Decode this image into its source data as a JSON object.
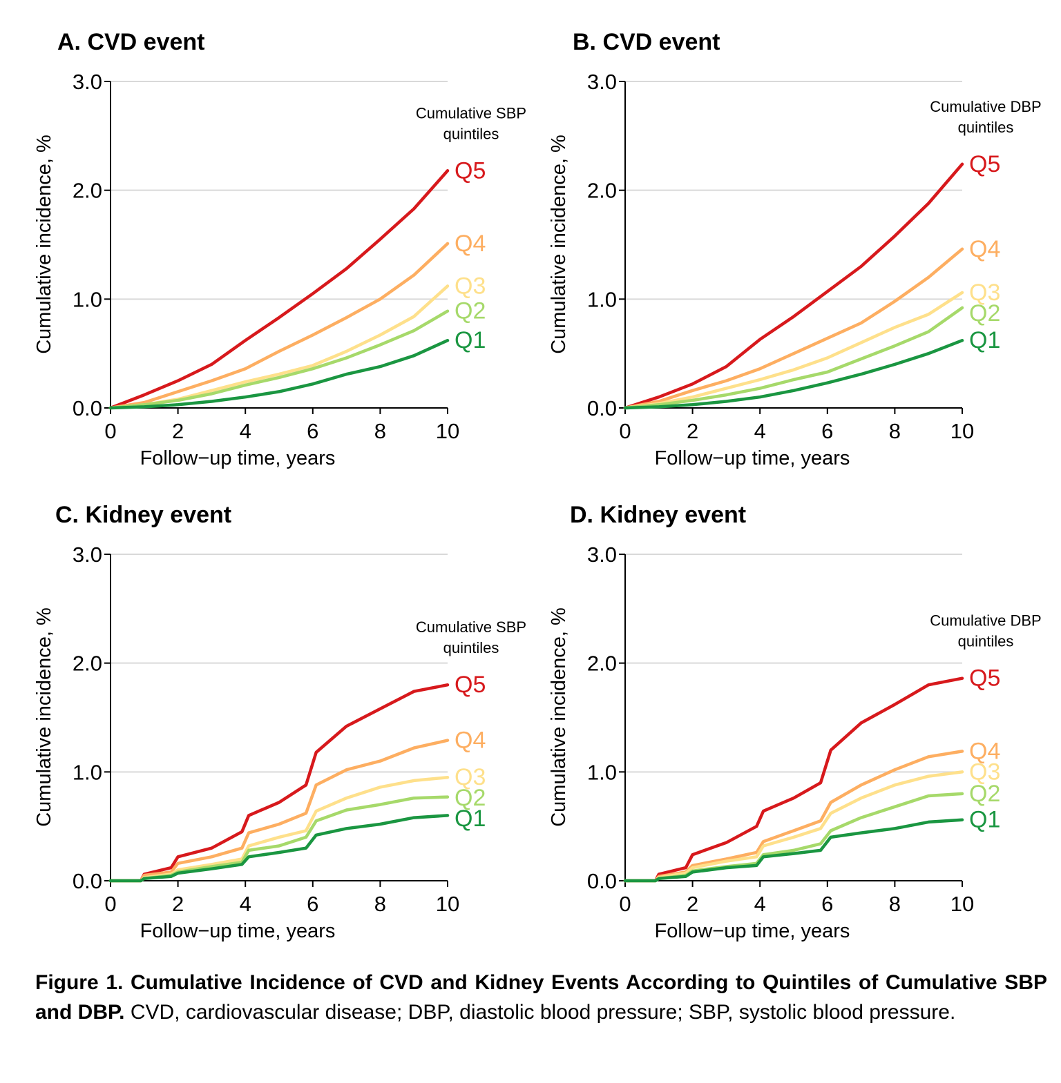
{
  "figure": {
    "caption_bold": "Figure 1. Cumulative Incidence of CVD and Kidney Events According to Quintiles of Cumulative SBP and DBP.",
    "caption_text": " CVD, cardiovascular disease; DBP, diastolic blood pressure; SBP, systolic blood pressure."
  },
  "colors": {
    "Q1": "#1a9641",
    "Q2": "#a6d96a",
    "Q3": "#fee08b",
    "Q4": "#fdae61",
    "Q5": "#d7191c"
  },
  "chart_data": [
    {
      "type": "line",
      "title": "A. CVD event",
      "xlabel": "Follow−up time, years",
      "ylabel": "Cumulative incidence, %",
      "xlim": [
        0,
        10
      ],
      "ylim": [
        0,
        3
      ],
      "xticks": [
        "0",
        "2",
        "4",
        "6",
        "8",
        "10"
      ],
      "yticks": [
        "0.0",
        "1.0",
        "2.0",
        "3.0"
      ],
      "legend_title": [
        "Cumulative SBP",
        "quintiles"
      ],
      "x": [
        0,
        1,
        2,
        3,
        4,
        5,
        6,
        7,
        8,
        9,
        10
      ],
      "series": [
        {
          "name": "Q5",
          "values": [
            0,
            0.12,
            0.25,
            0.4,
            0.62,
            0.83,
            1.05,
            1.28,
            1.55,
            1.83,
            2.18
          ]
        },
        {
          "name": "Q4",
          "values": [
            0,
            0.05,
            0.15,
            0.25,
            0.36,
            0.52,
            0.67,
            0.83,
            1.0,
            1.22,
            1.51
          ]
        },
        {
          "name": "Q3",
          "values": [
            0,
            0.03,
            0.08,
            0.16,
            0.24,
            0.31,
            0.39,
            0.52,
            0.67,
            0.84,
            1.12
          ]
        },
        {
          "name": "Q2",
          "values": [
            0,
            0.03,
            0.07,
            0.13,
            0.21,
            0.28,
            0.36,
            0.46,
            0.58,
            0.71,
            0.89
          ]
        },
        {
          "name": "Q1",
          "values": [
            0,
            0.01,
            0.03,
            0.06,
            0.1,
            0.15,
            0.22,
            0.31,
            0.38,
            0.48,
            0.62
          ]
        }
      ]
    },
    {
      "type": "line",
      "title": "B. CVD event",
      "xlabel": "Follow−up time, years",
      "ylabel": "Cumulative incidence, %",
      "xlim": [
        0,
        10
      ],
      "ylim": [
        0,
        3
      ],
      "xticks": [
        "0",
        "2",
        "4",
        "6",
        "8",
        "10"
      ],
      "yticks": [
        "0.0",
        "1.0",
        "2.0",
        "3.0"
      ],
      "legend_title": [
        "Cumulative DBP",
        "quintiles"
      ],
      "x": [
        0,
        1,
        2,
        3,
        4,
        5,
        6,
        7,
        8,
        9,
        10
      ],
      "series": [
        {
          "name": "Q5",
          "values": [
            0,
            0.1,
            0.22,
            0.38,
            0.63,
            0.84,
            1.07,
            1.3,
            1.58,
            1.88,
            2.24
          ]
        },
        {
          "name": "Q4",
          "values": [
            0,
            0.06,
            0.16,
            0.25,
            0.36,
            0.5,
            0.64,
            0.78,
            0.98,
            1.2,
            1.46
          ]
        },
        {
          "name": "Q3",
          "values": [
            0,
            0.04,
            0.1,
            0.18,
            0.26,
            0.35,
            0.46,
            0.6,
            0.74,
            0.86,
            1.06
          ]
        },
        {
          "name": "Q2",
          "values": [
            0,
            0.03,
            0.07,
            0.12,
            0.18,
            0.26,
            0.33,
            0.45,
            0.57,
            0.7,
            0.92
          ]
        },
        {
          "name": "Q1",
          "values": [
            0,
            0.01,
            0.03,
            0.06,
            0.1,
            0.16,
            0.23,
            0.31,
            0.4,
            0.5,
            0.62
          ]
        }
      ]
    },
    {
      "type": "line",
      "title": "C. Kidney event",
      "xlabel": "Follow−up time, years",
      "ylabel": "Cumulative incidence, %",
      "xlim": [
        0,
        10
      ],
      "ylim": [
        0,
        3
      ],
      "xticks": [
        "0",
        "2",
        "4",
        "6",
        "8",
        "10"
      ],
      "yticks": [
        "0.0",
        "1.0",
        "2.0",
        "3.0"
      ],
      "legend_title": [
        "Cumulative SBP",
        "quintiles"
      ],
      "x": [
        0,
        0.9,
        1.0,
        1.8,
        2.0,
        3.0,
        3.9,
        4.1,
        5.0,
        5.8,
        6.1,
        7.0,
        8.0,
        9.0,
        10.0
      ],
      "series": [
        {
          "name": "Q5",
          "values": [
            0,
            0,
            0.06,
            0.12,
            0.22,
            0.3,
            0.45,
            0.6,
            0.72,
            0.88,
            1.18,
            1.42,
            1.58,
            1.74,
            1.8
          ]
        },
        {
          "name": "Q4",
          "values": [
            0,
            0,
            0.05,
            0.08,
            0.16,
            0.22,
            0.3,
            0.44,
            0.52,
            0.62,
            0.88,
            1.02,
            1.1,
            1.22,
            1.29
          ]
        },
        {
          "name": "Q3",
          "values": [
            0,
            0,
            0.03,
            0.06,
            0.1,
            0.15,
            0.2,
            0.32,
            0.4,
            0.46,
            0.64,
            0.76,
            0.86,
            0.92,
            0.95
          ]
        },
        {
          "name": "Q2",
          "values": [
            0,
            0,
            0.02,
            0.05,
            0.08,
            0.13,
            0.17,
            0.28,
            0.32,
            0.4,
            0.55,
            0.65,
            0.7,
            0.76,
            0.77
          ]
        },
        {
          "name": "Q1",
          "values": [
            0,
            0,
            0.02,
            0.04,
            0.07,
            0.11,
            0.15,
            0.22,
            0.26,
            0.3,
            0.42,
            0.48,
            0.52,
            0.58,
            0.6
          ]
        }
      ]
    },
    {
      "type": "line",
      "title": "D. Kidney event",
      "xlabel": "Follow−up time, years",
      "ylabel": "Cumulative incidence, %",
      "xlim": [
        0,
        10
      ],
      "ylim": [
        0,
        3
      ],
      "xticks": [
        "0",
        "2",
        "4",
        "6",
        "8",
        "10"
      ],
      "yticks": [
        "0.0",
        "1.0",
        "2.0",
        "3.0"
      ],
      "legend_title": [
        "Cumulative DBP",
        "quintiles"
      ],
      "x": [
        0,
        0.9,
        1.0,
        1.8,
        2.0,
        3.0,
        3.9,
        4.1,
        5.0,
        5.8,
        6.1,
        7.0,
        8.0,
        9.0,
        10.0
      ],
      "series": [
        {
          "name": "Q5",
          "values": [
            0,
            0,
            0.06,
            0.12,
            0.24,
            0.35,
            0.5,
            0.64,
            0.76,
            0.9,
            1.2,
            1.45,
            1.62,
            1.8,
            1.86
          ]
        },
        {
          "name": "Q4",
          "values": [
            0,
            0,
            0.04,
            0.08,
            0.14,
            0.2,
            0.26,
            0.36,
            0.46,
            0.55,
            0.72,
            0.88,
            1.02,
            1.14,
            1.19
          ]
        },
        {
          "name": "Q3",
          "values": [
            0,
            0,
            0.03,
            0.07,
            0.12,
            0.18,
            0.22,
            0.32,
            0.4,
            0.48,
            0.62,
            0.76,
            0.88,
            0.96,
            1.0
          ]
        },
        {
          "name": "Q2",
          "values": [
            0,
            0,
            0.02,
            0.05,
            0.09,
            0.13,
            0.16,
            0.24,
            0.28,
            0.34,
            0.46,
            0.58,
            0.68,
            0.78,
            0.8
          ]
        },
        {
          "name": "Q1",
          "values": [
            0,
            0,
            0.02,
            0.04,
            0.08,
            0.12,
            0.14,
            0.22,
            0.25,
            0.28,
            0.4,
            0.44,
            0.48,
            0.54,
            0.56
          ]
        }
      ]
    }
  ]
}
